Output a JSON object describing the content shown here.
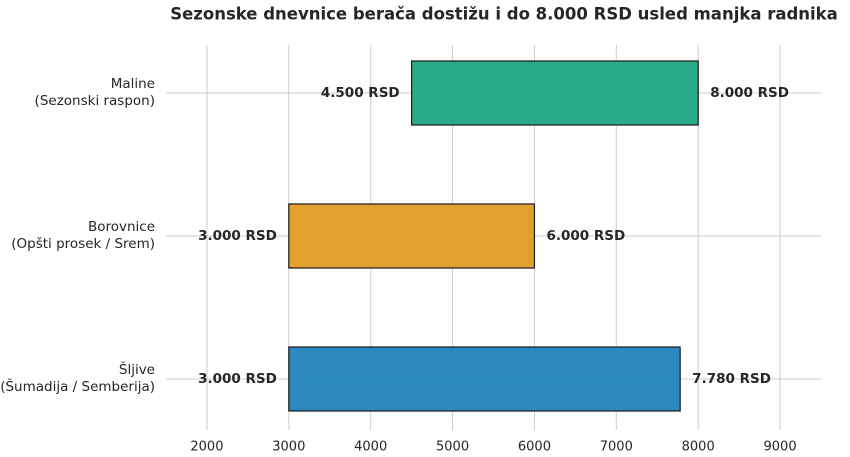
{
  "chart_data": {
    "type": "range-bar",
    "title": "Sezonske dnevnice berača dostižu i do 8.000 RSD usled manjka radnika",
    "categories": [
      "Maline\n(Sezonski raspon)",
      "Borovnice\n(Opšti prosek / Srem)",
      "Šljive\n(Šumadija / Semberija)"
    ],
    "values": [
      [
        4500,
        8000
      ],
      [
        3000,
        6000
      ],
      [
        3000,
        7780
      ]
    ],
    "value_labels": [
      [
        "4.500 RSD",
        "8.000 RSD"
      ],
      [
        "3.000 RSD",
        "6.000 RSD"
      ],
      [
        "3.000 RSD",
        "7.780 RSD"
      ]
    ],
    "colors": [
      "#23a884",
      "#e39d25",
      "#2485be"
    ],
    "xlim": [
      1500,
      9500
    ],
    "xticks": [
      2000,
      3000,
      4000,
      5000,
      6000,
      7000,
      8000,
      9000
    ],
    "grid": true
  }
}
